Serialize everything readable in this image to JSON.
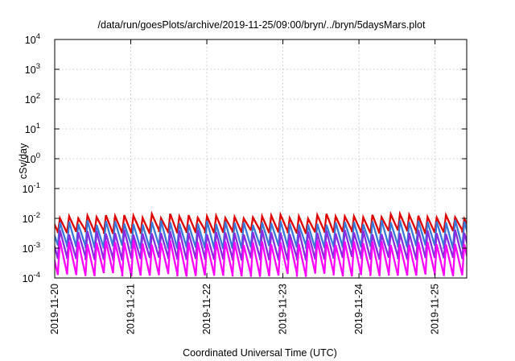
{
  "chart_data": {
    "type": "line",
    "title": "/data/run/goesPlots/archive/2019-11-25/09:00/bryn/../bryn/5daysMars.plot",
    "xlabel": "Coordinated Universal Time (UTC)",
    "ylabel": "cSv/day",
    "yscale": "log",
    "ylim": [
      0.0001,
      10000
    ],
    "xlim": [
      "2019-11-20T00:00",
      "2019-11-25T10:00"
    ],
    "xticks": [
      "2019-11-20",
      "2019-11-21",
      "2019-11-22",
      "2019-11-23",
      "2019-11-24",
      "2019-11-25"
    ],
    "yticks": [
      {
        "base": "10",
        "exp": "-4"
      },
      {
        "base": "10",
        "exp": "-3"
      },
      {
        "base": "10",
        "exp": "-2"
      },
      {
        "base": "10",
        "exp": "-1"
      },
      {
        "base": "10",
        "exp": "0"
      },
      {
        "base": "10",
        "exp": "1"
      },
      {
        "base": "10",
        "exp": "2"
      },
      {
        "base": "10",
        "exp": "3"
      },
      {
        "base": "10",
        "exp": "4"
      }
    ],
    "grid": true,
    "legend": "none",
    "pattern": {
      "description": "sawtooth, repeating about every 2.9 hours",
      "period_hours": 2.9,
      "phase_hours": 1.0
    },
    "series": [
      {
        "color": "#e00000",
        "peak": 0.012,
        "trough": 0.0035
      },
      {
        "color": "#3a78d8",
        "peak": 0.0075,
        "trough": 0.0011
      },
      {
        "color": "#8a2be2",
        "peak": 0.0035,
        "trough": 0.00045
      },
      {
        "color": "#ff00ff",
        "peak": 0.0016,
        "trough": 0.00013
      }
    ]
  }
}
